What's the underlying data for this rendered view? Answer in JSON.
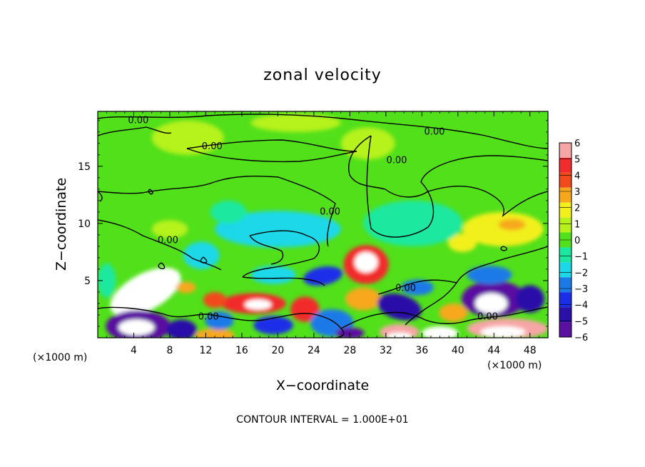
{
  "chart_data": {
    "type": "heatmap",
    "title": "zonal velocity",
    "xlabel": "X−coordinate",
    "ylabel": "Z−coordinate",
    "x_unit": "(×1000 m)",
    "y_unit": "(×1000 m)",
    "xlim": [
      0,
      50
    ],
    "ylim": [
      0,
      19.8
    ],
    "x_ticks": [
      4,
      8,
      12,
      16,
      20,
      24,
      28,
      32,
      36,
      40,
      44,
      48
    ],
    "x_tick_labels": [
      "4",
      "8",
      "12",
      "16",
      "20",
      "24",
      "28",
      "32",
      "36",
      "40",
      "44",
      "48"
    ],
    "y_ticks": [
      5,
      10,
      15
    ],
    "y_tick_labels": [
      "5",
      "10",
      "15"
    ],
    "colorbar": {
      "levels": [
        6,
        5,
        4,
        3,
        2,
        1,
        0,
        -1,
        -2,
        -3,
        -4,
        -5,
        -6
      ],
      "labels": [
        "6",
        "5",
        "4",
        "3",
        "2",
        "1",
        "0",
        "−1",
        "−2",
        "−3",
        "−4",
        "−5",
        "−6"
      ],
      "colors": [
        "#f7a6a6",
        "#f22b2b",
        "#f24a1a",
        "#f7a81a",
        "#f2f01a",
        "#b6f21a",
        "#52e01a",
        "#1ae8a0",
        "#1ad8e8",
        "#1a7ae8",
        "#1a2ee8",
        "#2a10a8",
        "#5a10a0"
      ]
    },
    "background_value": 0,
    "features": [
      {
        "x": 5.3,
        "z": 4.0,
        "rx": 4.3,
        "rz": 1.6,
        "rot": 28,
        "value": 6.6
      },
      {
        "x": 5.6,
        "z": 3.9,
        "rx": 2.3,
        "rz": 0.75,
        "rot": 26,
        "value": 7.4
      },
      {
        "x": 9.8,
        "z": 4.4,
        "rx": 1.1,
        "rz": 0.5,
        "rot": 0,
        "value": 3.2
      },
      {
        "x": 4.5,
        "z": 1.0,
        "rx": 3.6,
        "rz": 1.4,
        "rot": 0,
        "value": -5.6
      },
      {
        "x": 4.3,
        "z": 0.9,
        "rx": 2.0,
        "rz": 0.7,
        "rot": 0,
        "value": -7.5
      },
      {
        "x": 9.3,
        "z": 0.7,
        "rx": 1.7,
        "rz": 0.9,
        "rot": 0,
        "value": -5.2
      },
      {
        "x": 13.0,
        "z": 0.2,
        "rx": 2.2,
        "rz": 0.6,
        "rot": 0,
        "value": 3.2
      },
      {
        "x": 13.5,
        "z": 1.5,
        "rx": 1.6,
        "rz": 0.8,
        "rot": 0,
        "value": -3.4
      },
      {
        "x": 17.3,
        "z": 3.0,
        "rx": 3.6,
        "rz": 0.9,
        "rot": 0,
        "value": 5.4
      },
      {
        "x": 17.8,
        "z": 2.9,
        "rx": 1.5,
        "rz": 0.45,
        "rot": 0,
        "value": 7.4
      },
      {
        "x": 13.0,
        "z": 3.3,
        "rx": 1.3,
        "rz": 0.7,
        "rot": 0,
        "value": 3.5
      },
      {
        "x": 19.5,
        "z": 1.1,
        "rx": 2.2,
        "rz": 0.8,
        "rot": 0,
        "value": -3.6
      },
      {
        "x": 23.0,
        "z": 2.5,
        "rx": 1.6,
        "rz": 1.1,
        "rot": 0,
        "value": 4.6
      },
      {
        "x": 25.0,
        "z": 5.4,
        "rx": 2.2,
        "rz": 0.8,
        "rot": 10,
        "value": -3.6
      },
      {
        "x": 26.0,
        "z": 1.3,
        "rx": 2.4,
        "rz": 1.2,
        "rot": 0,
        "value": -3.2
      },
      {
        "x": 28.0,
        "z": 0.4,
        "rx": 1.6,
        "rz": 0.5,
        "rot": 0,
        "value": -6.5
      },
      {
        "x": 29.8,
        "z": 6.4,
        "rx": 2.5,
        "rz": 1.7,
        "rot": 0,
        "value": 5.4
      },
      {
        "x": 29.8,
        "z": 6.6,
        "rx": 1.3,
        "rz": 0.9,
        "rot": 0,
        "value": 6.7
      },
      {
        "x": 29.5,
        "z": 3.4,
        "rx": 2.0,
        "rz": 1.0,
        "rot": 0,
        "value": 3.0
      },
      {
        "x": 33.5,
        "z": 2.7,
        "rx": 2.5,
        "rz": 1.1,
        "rot": -15,
        "value": -5.2
      },
      {
        "x": 35.5,
        "z": 4.4,
        "rx": 1.8,
        "rz": 0.7,
        "rot": 0,
        "value": -3.0
      },
      {
        "x": 33.5,
        "z": 0.5,
        "rx": 2.2,
        "rz": 0.7,
        "rot": 0,
        "value": 5.5
      },
      {
        "x": 33.5,
        "z": 0.1,
        "rx": 1.4,
        "rz": 0.35,
        "rot": 0,
        "value": -7.0
      },
      {
        "x": 38.0,
        "z": 0.4,
        "rx": 2.0,
        "rz": 0.6,
        "rot": 0,
        "value": -7.0
      },
      {
        "x": 39.5,
        "z": 2.2,
        "rx": 1.6,
        "rz": 0.8,
        "rot": 0,
        "value": 2.6
      },
      {
        "x": 44.0,
        "z": 3.4,
        "rx": 3.6,
        "rz": 1.6,
        "rot": 0,
        "value": -5.8
      },
      {
        "x": 43.7,
        "z": 3.0,
        "rx": 1.8,
        "rz": 0.9,
        "rot": 0,
        "value": -7.6
      },
      {
        "x": 48.0,
        "z": 3.4,
        "rx": 1.6,
        "rz": 1.2,
        "rot": 0,
        "value": -4.6
      },
      {
        "x": 43.5,
        "z": 5.5,
        "rx": 2.5,
        "rz": 0.8,
        "rot": 0,
        "value": -3.0
      },
      {
        "x": 45.5,
        "z": 0.8,
        "rx": 4.5,
        "rz": 0.9,
        "rot": 0,
        "value": 5.6
      },
      {
        "x": 45.0,
        "z": 0.5,
        "rx": 2.5,
        "rz": 0.5,
        "rot": 0,
        "value": 7.5
      },
      {
        "x": 45.0,
        "z": 9.5,
        "rx": 4.5,
        "rz": 1.5,
        "rot": 0,
        "value": 2.3
      },
      {
        "x": 40.5,
        "z": 8.3,
        "rx": 1.6,
        "rz": 0.8,
        "rot": 0,
        "value": 2.4
      },
      {
        "x": 46.0,
        "z": 9.9,
        "rx": 1.5,
        "rz": 0.5,
        "rot": 0,
        "value": 3.0
      },
      {
        "x": 20.0,
        "z": 9.5,
        "rx": 7.0,
        "rz": 1.6,
        "rot": 0,
        "value": -1.7
      },
      {
        "x": 35.0,
        "z": 10.0,
        "rx": 5.5,
        "rz": 2.0,
        "rot": 0,
        "value": -1.3
      },
      {
        "x": 11.5,
        "z": 7.2,
        "rx": 2.0,
        "rz": 1.2,
        "rot": 0,
        "value": -1.6
      },
      {
        "x": 14.5,
        "z": 11.0,
        "rx": 2.0,
        "rz": 1.0,
        "rot": 0,
        "value": -1.4
      },
      {
        "x": 8.0,
        "z": 9.5,
        "rx": 2.0,
        "rz": 0.8,
        "rot": 0,
        "value": 1.2
      },
      {
        "x": 19.5,
        "z": 5.5,
        "rx": 2.5,
        "rz": 0.8,
        "rot": 0,
        "value": -2.2
      },
      {
        "x": 10.0,
        "z": 17.5,
        "rx": 4.0,
        "rz": 1.5,
        "rot": 0,
        "value": 0.8
      },
      {
        "x": 22.0,
        "z": 18.8,
        "rx": 5.0,
        "rz": 0.8,
        "rot": 0,
        "value": 0.9
      },
      {
        "x": 30.0,
        "z": 17.0,
        "rx": 3.0,
        "rz": 1.4,
        "rot": 0,
        "value": 0.9
      },
      {
        "x": 1.0,
        "z": 5.0,
        "rx": 1.0,
        "rz": 1.5,
        "rot": 0,
        "value": -1.5
      }
    ],
    "contour_labels": [
      {
        "text": "0.00",
        "x": 4.5,
        "z": 19.0
      },
      {
        "text": "0.00",
        "x": 12.7,
        "z": 16.7
      },
      {
        "text": "0.00",
        "x": 37.4,
        "z": 18.0
      },
      {
        "text": "0.00",
        "x": 33.2,
        "z": 15.5
      },
      {
        "text": "0.00",
        "x": 25.8,
        "z": 11.0
      },
      {
        "text": "0.00",
        "x": 7.8,
        "z": 8.5
      },
      {
        "text": "0.00",
        "x": 34.2,
        "z": 4.3
      },
      {
        "text": "0.00",
        "x": 12.3,
        "z": 1.8
      },
      {
        "text": "0.00",
        "x": 43.3,
        "z": 1.8
      }
    ]
  },
  "footer": {
    "contour_interval": "CONTOUR INTERVAL = 1.000E+01"
  }
}
